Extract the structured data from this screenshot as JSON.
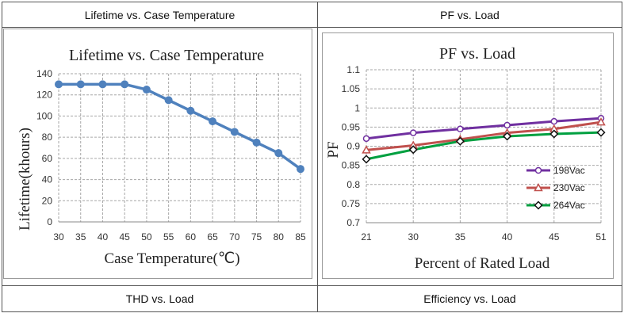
{
  "table": {
    "headers": [
      "Lifetime vs. Case Temperature",
      "PF vs. Load"
    ],
    "footers": [
      "THD vs. Load",
      "Efficiency vs. Load"
    ]
  },
  "colors": {
    "lifetime_line": "#4f81bd",
    "s198": "#7030a0",
    "s230": "#c0504d",
    "s264": "#00a040",
    "grid": "#a6a6a6"
  },
  "chart_data": [
    {
      "type": "line",
      "title": "Lifetime vs. Case Temperature",
      "xlabel": "Case Temperature(℃)",
      "ylabel": "Lifetime(khours)",
      "x": [
        30,
        35,
        40,
        45,
        50,
        55,
        60,
        65,
        70,
        75,
        80,
        85
      ],
      "values": [
        130,
        130,
        130,
        130,
        125,
        115,
        105,
        95,
        85,
        75,
        65,
        50
      ],
      "xticks": [
        "30",
        "35",
        "40",
        "45",
        "50",
        "55",
        "60",
        "65",
        "70",
        "75",
        "80",
        "85"
      ],
      "yticks": [
        "0",
        "20",
        "40",
        "60",
        "80",
        "100",
        "120",
        "140"
      ],
      "ylim": [
        0,
        140
      ],
      "grid": true
    },
    {
      "type": "line",
      "title": "PF vs. Load",
      "xlabel": "Percent of Rated Load",
      "ylabel": "PF",
      "categories": [
        "21",
        "30",
        "35",
        "40",
        "45",
        "51"
      ],
      "yticks": [
        "0.7",
        "0.75",
        "0.8",
        "0.85",
        "0.9",
        "0.95",
        "1",
        "1.05",
        "1.1"
      ],
      "ylim": [
        0.7,
        1.1
      ],
      "grid": true,
      "legend": "right",
      "series": [
        {
          "name": "198Vac",
          "values": [
            0.92,
            0.935,
            0.945,
            0.955,
            0.965,
            0.973
          ]
        },
        {
          "name": "230Vac",
          "values": [
            0.89,
            0.902,
            0.918,
            0.935,
            0.945,
            0.963
          ]
        },
        {
          "name": "264Vac",
          "values": [
            0.866,
            0.891,
            0.913,
            0.926,
            0.932,
            0.936
          ]
        }
      ]
    }
  ]
}
